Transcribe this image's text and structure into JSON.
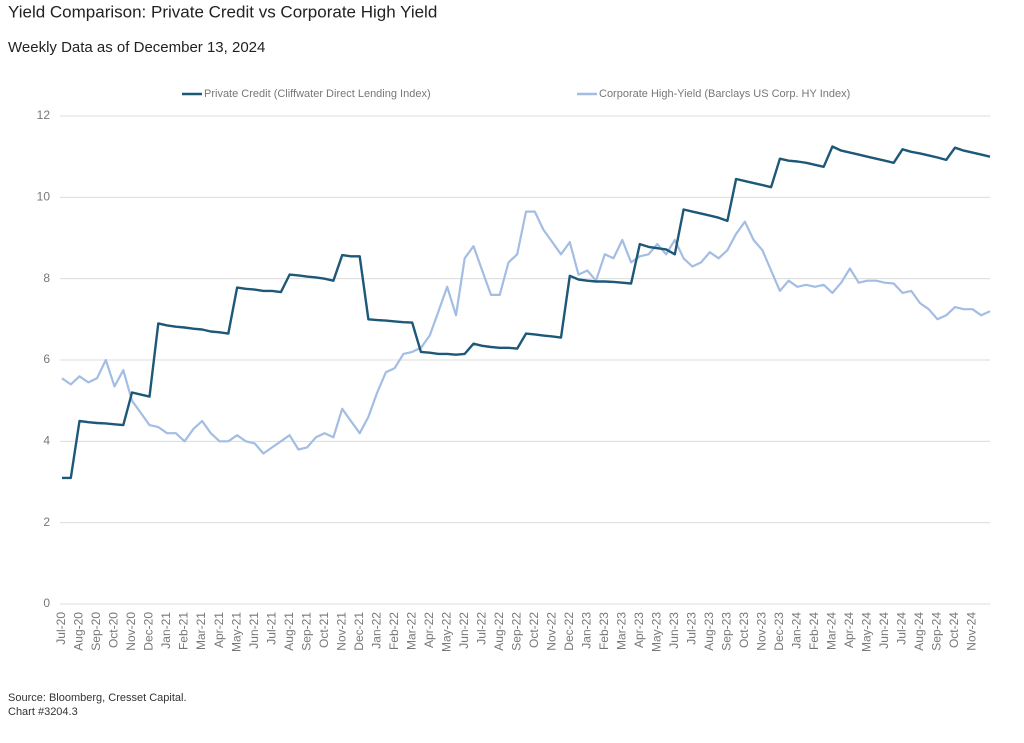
{
  "chart_data": {
    "type": "line",
    "title": "Yield Comparison: Private Credit vs Corporate High Yield",
    "subtitle": "Weekly Data as of December 13, 2024",
    "footnotes": [
      "Source: Bloomberg, Cresset Capital.",
      "Chart #3204.3"
    ],
    "categories": [
      "Jul-20",
      null,
      "Aug-20",
      null,
      "Sep-20",
      null,
      "Oct-20",
      null,
      "Nov-20",
      null,
      "Dec-20",
      null,
      "Jan-21",
      null,
      "Feb-21",
      null,
      "Mar-21",
      null,
      "Apr-21",
      null,
      "May-21",
      null,
      "Jun-21",
      null,
      "Jul-21",
      null,
      "Aug-21",
      null,
      "Sep-21",
      null,
      "Oct-21",
      null,
      "Nov-21",
      null,
      "Dec-21",
      null,
      "Jan-22",
      null,
      "Feb-22",
      null,
      "Mar-22",
      null,
      "Apr-22",
      null,
      "May-22",
      null,
      "Jun-22",
      null,
      "Jul-22",
      null,
      "Aug-22",
      null,
      "Sep-22",
      null,
      "Oct-22",
      null,
      "Nov-22",
      null,
      "Dec-22",
      null,
      "Jan-23",
      null,
      "Feb-23",
      null,
      "Mar-23",
      null,
      "Apr-23",
      null,
      "May-23",
      null,
      "Jun-23",
      null,
      "Jul-23",
      null,
      "Aug-23",
      null,
      "Sep-23",
      null,
      "Oct-23",
      null,
      "Nov-23",
      null,
      "Dec-23",
      null,
      "Jan-24",
      null,
      "Feb-24",
      null,
      "Mar-24",
      null,
      "Apr-24",
      null,
      "May-24",
      null,
      "Jun-24",
      null,
      "Jul-24",
      null,
      "Aug-24",
      null,
      "Sep-24",
      null,
      "Oct-24",
      null,
      "Nov-24",
      null,
      null
    ],
    "series": [
      {
        "name": "Private Credit (Cliffwater Direct Lending Index)",
        "color": "#1d5878",
        "values": [
          3.1,
          3.1,
          4.5,
          4.47,
          4.45,
          4.44,
          4.42,
          4.4,
          5.2,
          5.15,
          5.1,
          6.9,
          6.85,
          6.82,
          6.8,
          6.77,
          6.75,
          6.7,
          6.68,
          6.65,
          7.78,
          7.75,
          7.73,
          7.7,
          7.7,
          7.67,
          8.1,
          8.08,
          8.05,
          8.03,
          8.0,
          7.95,
          8.58,
          8.55,
          8.55,
          7.0,
          6.98,
          6.97,
          6.95,
          6.93,
          6.92,
          6.2,
          6.18,
          6.15,
          6.15,
          6.13,
          6.15,
          6.4,
          6.35,
          6.32,
          6.3,
          6.3,
          6.28,
          6.65,
          6.63,
          6.6,
          6.58,
          6.55,
          8.07,
          7.98,
          7.95,
          7.93,
          7.93,
          7.92,
          7.9,
          7.88,
          8.85,
          8.78,
          8.75,
          8.72,
          8.6,
          9.7,
          9.65,
          9.6,
          9.55,
          9.5,
          9.42,
          10.45,
          10.4,
          10.35,
          10.3,
          10.25,
          10.95,
          10.9,
          10.88,
          10.85,
          10.8,
          10.75,
          11.25,
          11.15,
          11.1,
          11.05,
          11.0,
          10.95,
          10.9,
          10.85,
          11.18,
          11.12,
          11.08,
          11.03,
          10.98,
          10.92,
          11.22,
          11.15,
          11.1,
          11.05,
          11.0
        ]
      },
      {
        "name": "Corporate High-Yield (Barclays US Corp. HY Index)",
        "color": "#a3bde3",
        "values": [
          5.55,
          5.4,
          5.6,
          5.45,
          5.55,
          6.0,
          5.35,
          5.75,
          5.0,
          4.7,
          4.4,
          4.35,
          4.2,
          4.2,
          4.0,
          4.3,
          4.5,
          4.2,
          4.0,
          4.0,
          4.15,
          4.0,
          3.95,
          3.7,
          3.85,
          4.0,
          4.15,
          3.8,
          3.85,
          4.1,
          4.2,
          4.1,
          4.8,
          4.5,
          4.2,
          4.6,
          5.2,
          5.7,
          5.8,
          6.15,
          6.2,
          6.3,
          6.6,
          7.2,
          7.8,
          7.1,
          8.5,
          8.8,
          8.2,
          7.6,
          7.6,
          8.4,
          8.6,
          9.65,
          9.65,
          9.2,
          8.9,
          8.6,
          8.9,
          8.1,
          8.2,
          7.95,
          8.6,
          8.5,
          8.95,
          8.4,
          8.55,
          8.6,
          8.85,
          8.6,
          8.95,
          8.5,
          8.3,
          8.4,
          8.65,
          8.5,
          8.7,
          9.1,
          9.4,
          8.95,
          8.7,
          8.2,
          7.7,
          7.95,
          7.8,
          7.85,
          7.8,
          7.85,
          7.65,
          7.9,
          8.25,
          7.9,
          7.95,
          7.95,
          7.9,
          7.88,
          7.65,
          7.7,
          7.4,
          7.25,
          7.0,
          7.1,
          7.3,
          7.25,
          7.25,
          7.1,
          7.2
        ]
      }
    ],
    "ylim": [
      0,
      12
    ],
    "yticks": [
      0,
      2,
      4,
      6,
      8,
      10,
      12
    ],
    "grid": true,
    "legend": "top"
  }
}
